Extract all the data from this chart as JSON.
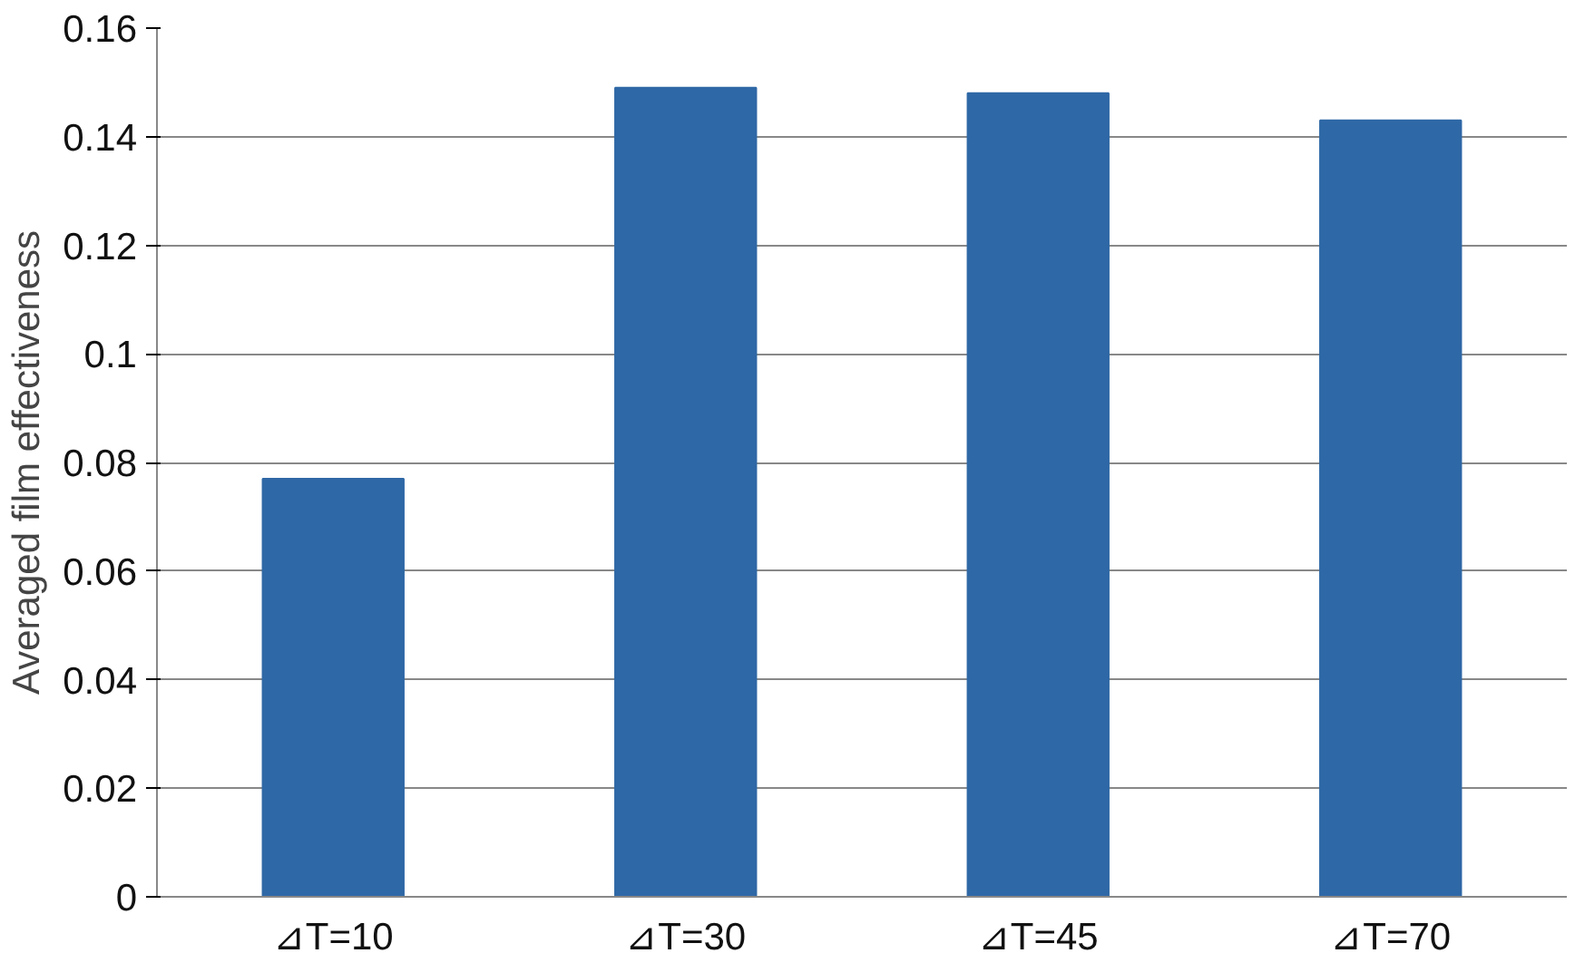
{
  "chart_data": {
    "type": "bar",
    "ylabel": "Averaged film effectiveness",
    "categories": [
      "⊿T=10",
      "⊿T=30",
      "⊿T=45",
      "⊿T=70"
    ],
    "values": [
      0.077,
      0.149,
      0.148,
      0.143
    ],
    "color": "#2f68a6",
    "ylim": [
      0,
      0.16
    ],
    "yticks": [
      0,
      0.02,
      0.04,
      0.06,
      0.08,
      0.1,
      0.12,
      0.14,
      0.16
    ],
    "grid": "y"
  }
}
